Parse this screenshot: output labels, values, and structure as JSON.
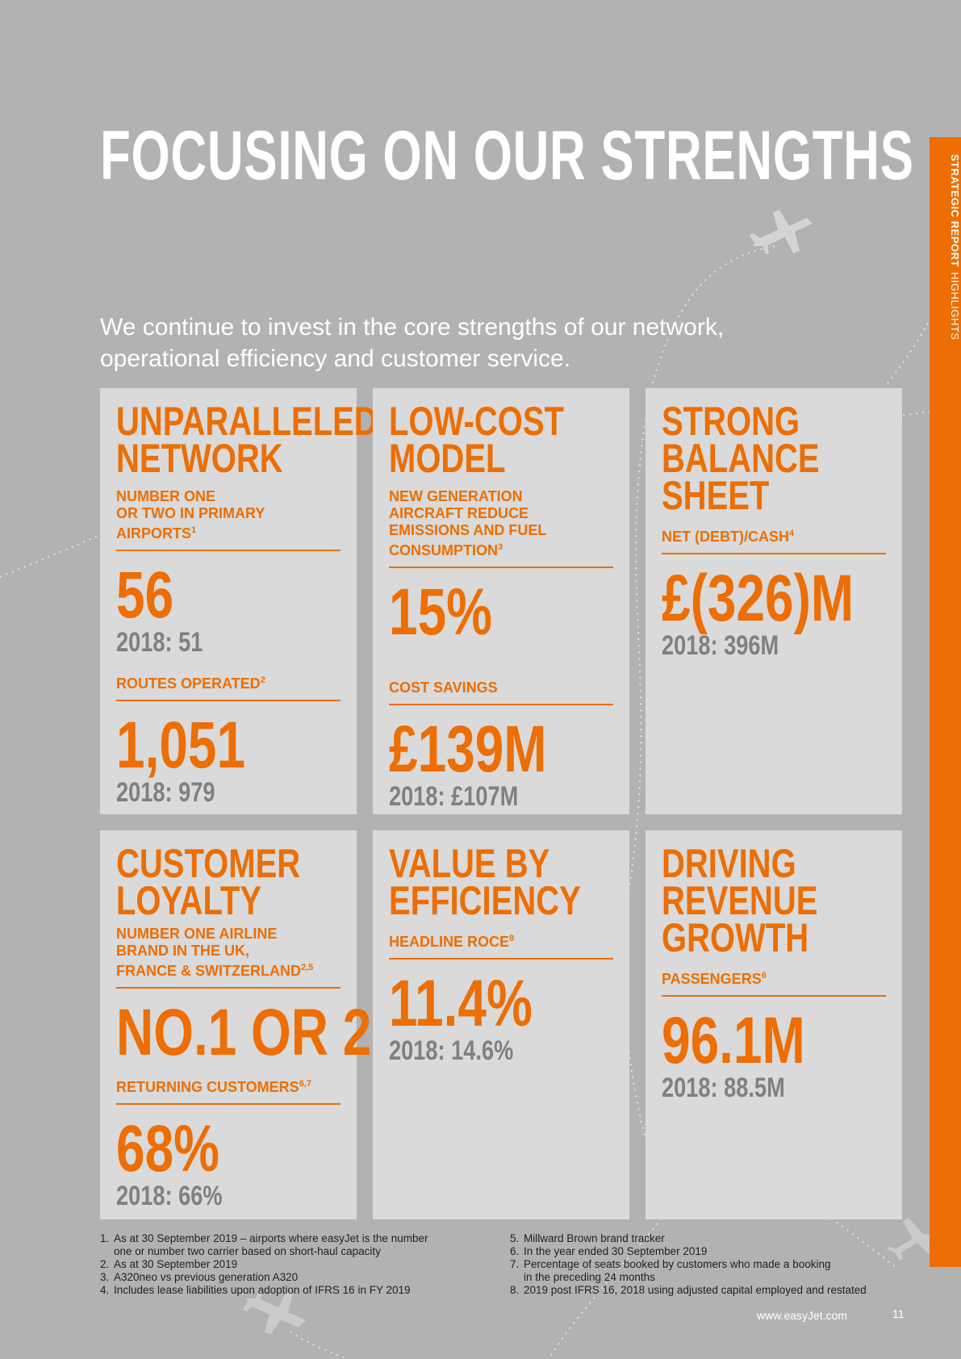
{
  "sidebar": {
    "section": "STRATEGIC REPORT",
    "subsection": "HIGHLIGHTS"
  },
  "header": {
    "title": "FOCUSING ON OUR STRENGTHS",
    "intro": "We continue to invest in the core strengths of our network, operational efficiency and customer service."
  },
  "cards": [
    {
      "title": "UNPARALLELED\nNETWORK",
      "metrics": [
        {
          "label": "NUMBER ONE\nOR TWO IN PRIMARY\nAIRPORTS",
          "sup": "1",
          "value": "56",
          "prior": "2018: 51"
        },
        {
          "label": "ROUTES OPERATED",
          "sup": "2",
          "value": "1,051",
          "prior": "2018: 979"
        }
      ]
    },
    {
      "title": "LOW-COST\nMODEL",
      "metrics": [
        {
          "label": "NEW GENERATION\nAIRCRAFT REDUCE\nEMISSIONS AND FUEL\nCONSUMPTION",
          "sup": "3",
          "value": "15%",
          "prior": ""
        },
        {
          "label": "COST SAVINGS",
          "sup": "",
          "value": "£139M",
          "prior": "2018: £107M"
        }
      ]
    },
    {
      "title": "STRONG\nBALANCE\nSHEET",
      "metrics": [
        {
          "label": "NET (DEBT)/CASH",
          "sup": "4",
          "value": "£(326)M",
          "prior": "2018: 396M"
        }
      ]
    },
    {
      "title": "CUSTOMER\nLOYALTY",
      "metrics": [
        {
          "label": "NUMBER ONE AIRLINE\nBRAND IN THE UK,\nFRANCE & SWITZERLAND",
          "sup": "2,5",
          "value": "NO.1 OR 2",
          "prior": ""
        },
        {
          "label": "RETURNING CUSTOMERS",
          "sup": "6,7",
          "value": "68%",
          "prior": "2018: 66%"
        }
      ]
    },
    {
      "title": "VALUE BY\nEFFICIENCY",
      "metrics": [
        {
          "label": "HEADLINE ROCE",
          "sup": "8",
          "value": "11.4%",
          "prior": "2018: 14.6%"
        }
      ]
    },
    {
      "title": "DRIVING\nREVENUE\nGROWTH",
      "metrics": [
        {
          "label": "PASSENGERS",
          "sup": "6",
          "value": "96.1M",
          "prior": "2018: 88.5M"
        }
      ]
    }
  ],
  "footnotes_left": [
    {
      "num": "1.",
      "text": "As at 30 September 2019 – airports where easyJet is the number\none or number two carrier based on short-haul capacity"
    },
    {
      "num": "2.",
      "text": "As at 30 September 2019"
    },
    {
      "num": "3.",
      "text": "A320neo vs previous generation A320"
    },
    {
      "num": "4.",
      "text": "Includes lease liabilities upon adoption of IFRS 16 in FY 2019"
    }
  ],
  "footnotes_right": [
    {
      "num": "5.",
      "text": "Millward Brown brand tracker"
    },
    {
      "num": "6.",
      "text": "In the year ended 30 September 2019"
    },
    {
      "num": "7.",
      "text": "Percentage of seats booked by customers who made a booking\nin the preceding 24 months"
    },
    {
      "num": "8.",
      "text": "2019 post IFRS 16, 2018 using adjusted capital employed and restated"
    }
  ],
  "footer": {
    "url": "www.easyJet.com",
    "page": "11"
  },
  "colors": {
    "accent": "#ec6e04",
    "background": "#b1b2b1",
    "card": "#d9dad9",
    "muted": "#7f807f"
  },
  "icons": [
    "plane-icon"
  ]
}
